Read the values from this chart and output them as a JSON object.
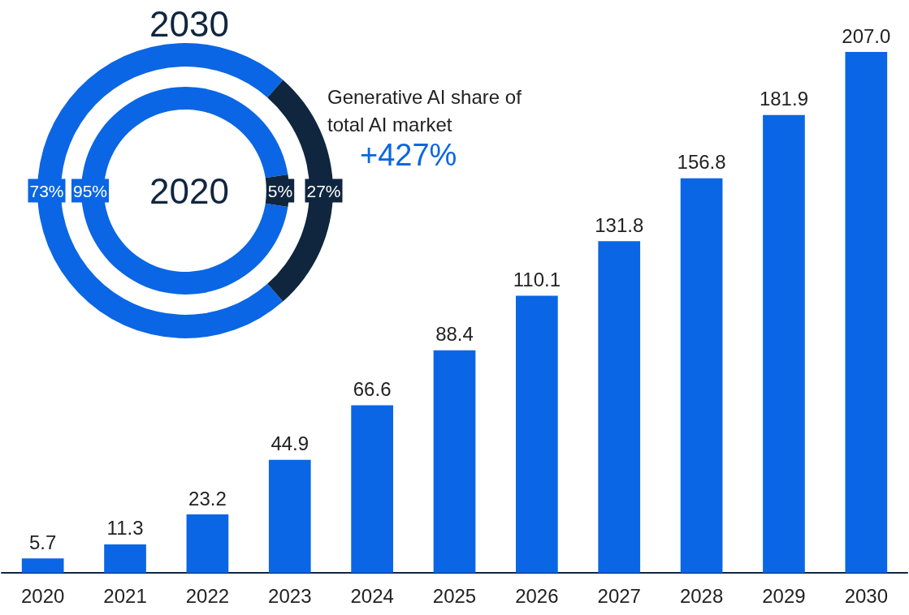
{
  "chart_data": [
    {
      "type": "donut",
      "title": "2030",
      "categories": [
        null,
        null
      ],
      "values": [
        73,
        27
      ],
      "colors": [
        "#0a66e4",
        "#10263f"
      ],
      "value_labels": [
        "73%",
        "27%"
      ],
      "annotations": [
        "Generative AI share of total AI market",
        "+427%"
      ]
    },
    {
      "type": "donut",
      "title": "2020",
      "categories": [
        null,
        null
      ],
      "values": [
        95,
        5
      ],
      "colors": [
        "#0a66e4",
        "#10263f"
      ],
      "value_labels": [
        "95%",
        "5%"
      ]
    },
    {
      "type": "bar",
      "categories": [
        "2020",
        "2021",
        "2022",
        "2023",
        "2024",
        "2025",
        "2026",
        "2027",
        "2028",
        "2029",
        "2030"
      ],
      "values": [
        5.7,
        11.3,
        23.2,
        44.9,
        66.6,
        88.4,
        110.1,
        131.8,
        156.8,
        181.9,
        207.0
      ],
      "color": "#0a66e4",
      "value_labels": [
        "5.7",
        "11.3",
        "23.2",
        "44.9",
        "66.6",
        "88.4",
        "110.1",
        "131.8",
        "156.8",
        "181.9",
        "207.0"
      ]
    }
  ]
}
